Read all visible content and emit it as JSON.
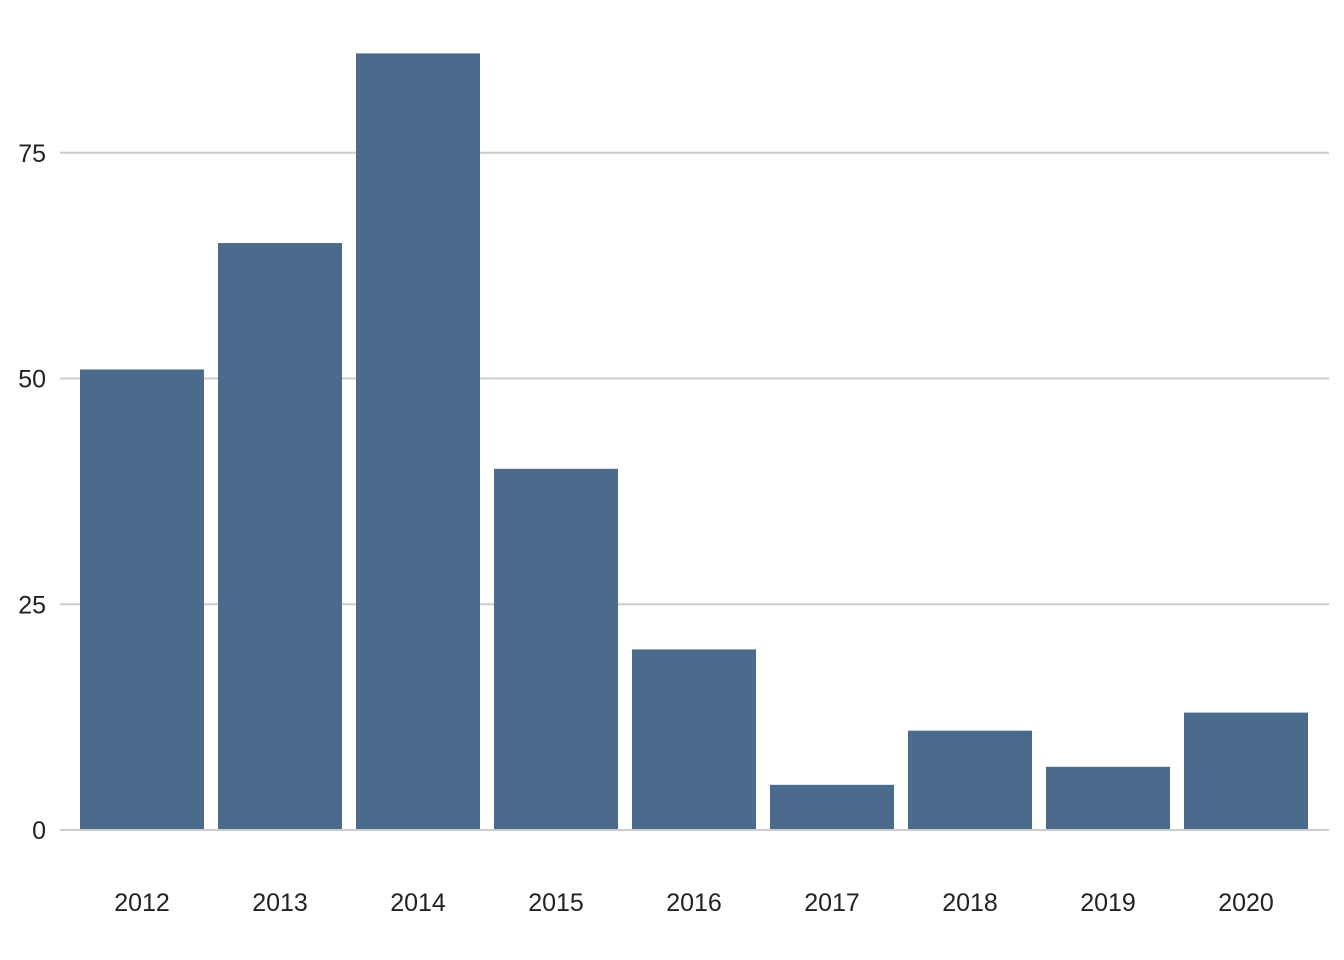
{
  "chart_data": {
    "type": "bar",
    "title": "",
    "xlabel": "",
    "ylabel": "",
    "categories": [
      "2012",
      "2013",
      "2014",
      "2015",
      "2016",
      "2017",
      "2018",
      "2019",
      "2020"
    ],
    "values": [
      51,
      65,
      86,
      40,
      20,
      5,
      11,
      7,
      13
    ],
    "ylim": [
      0,
      90
    ],
    "yticks": [
      0,
      25,
      50,
      75
    ],
    "grid": true,
    "legend": "none",
    "bar_color": "#4a6b8c",
    "grid_color": "#cccccc"
  }
}
